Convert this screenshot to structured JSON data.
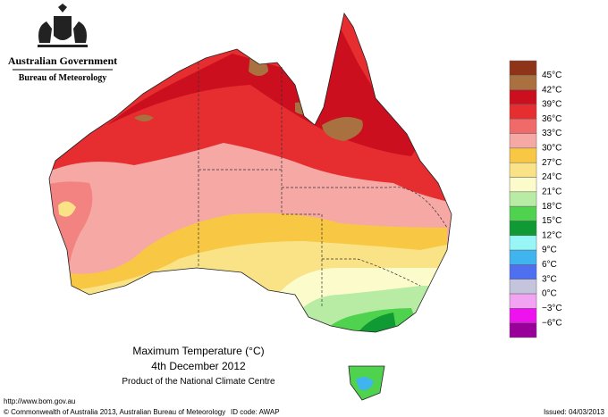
{
  "header": {
    "government": "Australian Government",
    "agency": "Bureau of Meteorology"
  },
  "map": {
    "title": "Maximum Temperature (°C)",
    "date": "4th December 2012",
    "product": "Product of the National Climate Centre"
  },
  "legend": {
    "colors": [
      "#8e3418",
      "#a9713f",
      "#cc0f1e",
      "#e62e30",
      "#f06a6a",
      "#f5a8a4",
      "#f8c844",
      "#f9e386",
      "#fbfbcc",
      "#b8eca4",
      "#4fd34f",
      "#0f9a34",
      "#98f6f6",
      "#3fb4ee",
      "#4d6ff0",
      "#c4c4dc",
      "#f2a4f2",
      "#ee12ee",
      "#990099"
    ],
    "labels": [
      "45°C",
      "42°C",
      "39°C",
      "36°C",
      "33°C",
      "30°C",
      "27°C",
      "24°C",
      "21°C",
      "18°C",
      "15°C",
      "12°C",
      "9°C",
      "6°C",
      "3°C",
      "0°C",
      "−3°C",
      "−6°C"
    ]
  },
  "footer": {
    "url": "http://www.bom.gov.au",
    "copyright": "© Commonwealth of Australia 2013, Australian Bureau of Meteorology",
    "id_code": "ID code: AWAP",
    "issued": "Issued: 04/03/2013"
  }
}
